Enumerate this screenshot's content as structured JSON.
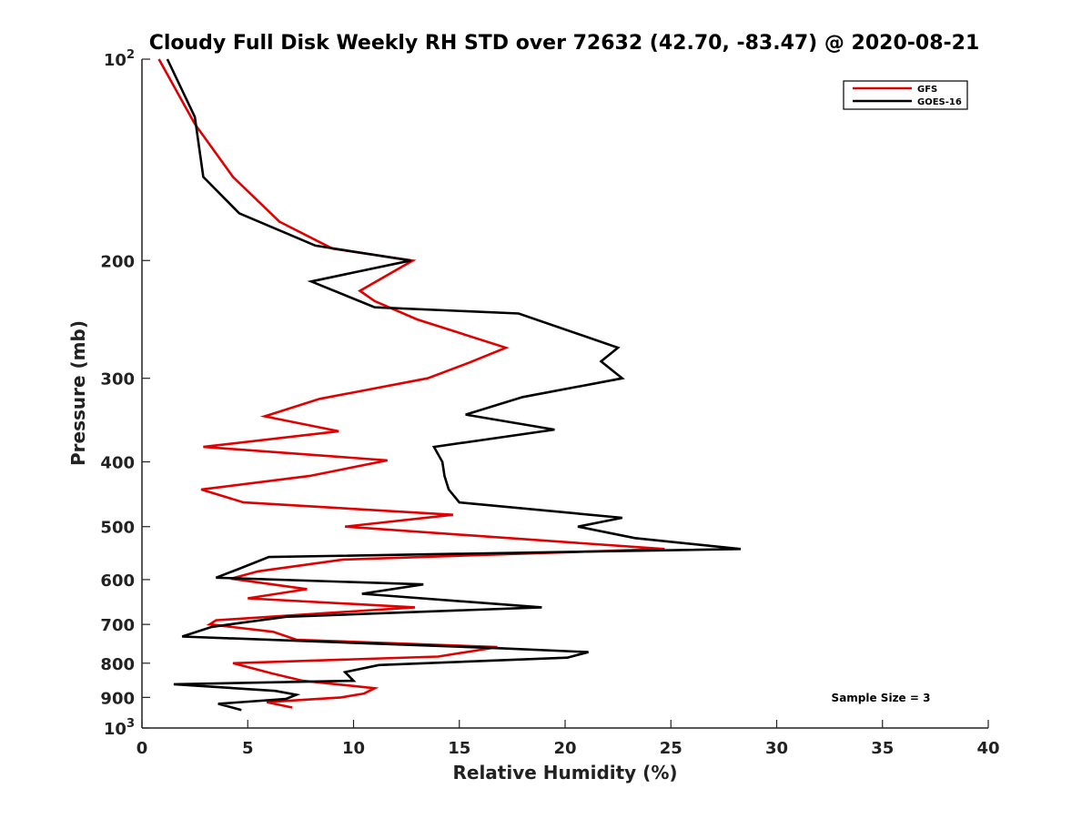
{
  "chart_data": {
    "type": "line",
    "title": "Cloudy Full Disk Weekly RH STD over 72632 (42.70, -83.47) @ 2020-08-21",
    "xlabel": "Relative Humidity (%)",
    "ylabel": "Pressure (mb)",
    "xlim": [
      0,
      40
    ],
    "ylim": [
      1000,
      100
    ],
    "y_scale": "log",
    "x_ticks": [
      0,
      5,
      10,
      15,
      20,
      25,
      30,
      35,
      40
    ],
    "x_tick_labels": [
      "0",
      "5",
      "10",
      "15",
      "20",
      "25",
      "30",
      "35",
      "40"
    ],
    "y_ticks": [
      100,
      200,
      300,
      400,
      500,
      600,
      700,
      800,
      900,
      1000
    ],
    "y_tick_labels": [
      {
        "base": "10",
        "exp": "2"
      },
      {
        "base": "200",
        "exp": ""
      },
      {
        "base": "300",
        "exp": ""
      },
      {
        "base": "400",
        "exp": ""
      },
      {
        "base": "500",
        "exp": ""
      },
      {
        "base": "600",
        "exp": ""
      },
      {
        "base": "700",
        "exp": ""
      },
      {
        "base": "800",
        "exp": ""
      },
      {
        "base": "900",
        "exp": ""
      },
      {
        "base": "10",
        "exp": "3"
      }
    ],
    "legend_position": "top-right",
    "annotation": "Sample Size = 3",
    "grid": false,
    "series": [
      {
        "name": "GFS",
        "color": "#e00000",
        "points": [
          [
            0.8,
            100
          ],
          [
            2.5,
            125
          ],
          [
            4.3,
            150
          ],
          [
            6.5,
            175
          ],
          [
            9.0,
            192
          ],
          [
            12.8,
            200
          ],
          [
            10.3,
            222
          ],
          [
            11.0,
            230
          ],
          [
            13.0,
            245
          ],
          [
            17.2,
            270
          ],
          [
            15.5,
            284
          ],
          [
            13.5,
            300
          ],
          [
            8.4,
            322
          ],
          [
            5.8,
            342
          ],
          [
            9.3,
            360
          ],
          [
            2.9,
            380
          ],
          [
            11.6,
            398
          ],
          [
            7.9,
            420
          ],
          [
            2.8,
            440
          ],
          [
            4.8,
            460
          ],
          [
            14.7,
            480
          ],
          [
            9.6,
            500
          ],
          [
            24.7,
            540
          ],
          [
            9.5,
            560
          ],
          [
            5.5,
            583
          ],
          [
            4.2,
            598
          ],
          [
            7.8,
            620
          ],
          [
            5.0,
            640
          ],
          [
            12.9,
            660
          ],
          [
            3.5,
            690
          ],
          [
            3.2,
            700
          ],
          [
            6.2,
            718
          ],
          [
            7.3,
            738
          ],
          [
            16.8,
            757
          ],
          [
            14.0,
            782
          ],
          [
            4.3,
            800
          ],
          [
            6.1,
            828
          ],
          [
            7.6,
            850
          ],
          [
            11.0,
            872
          ],
          [
            10.5,
            888
          ],
          [
            9.4,
            900
          ],
          [
            5.9,
            915
          ],
          [
            7.1,
            932
          ]
        ]
      },
      {
        "name": "GOES-16",
        "color": "#000000",
        "points": [
          [
            1.2,
            100
          ],
          [
            2.5,
            122
          ],
          [
            2.9,
            150
          ],
          [
            4.6,
            170
          ],
          [
            8.2,
            190
          ],
          [
            12.7,
            200
          ],
          [
            8.0,
            215
          ],
          [
            11.0,
            235
          ],
          [
            17.8,
            240
          ],
          [
            22.5,
            270
          ],
          [
            21.7,
            283
          ],
          [
            22.7,
            300
          ],
          [
            18.0,
            320
          ],
          [
            15.3,
            340
          ],
          [
            19.5,
            358
          ],
          [
            13.8,
            380
          ],
          [
            14.2,
            400
          ],
          [
            14.3,
            420
          ],
          [
            14.5,
            440
          ],
          [
            15.0,
            460
          ],
          [
            22.7,
            485
          ],
          [
            20.6,
            500
          ],
          [
            23.3,
            520
          ],
          [
            28.3,
            540
          ],
          [
            6.0,
            555
          ],
          [
            4.6,
            578
          ],
          [
            3.5,
            596
          ],
          [
            13.3,
            610
          ],
          [
            10.4,
            630
          ],
          [
            18.9,
            660
          ],
          [
            6.8,
            682
          ],
          [
            3.3,
            706
          ],
          [
            1.9,
            730
          ],
          [
            17.0,
            760
          ],
          [
            21.1,
            770
          ],
          [
            20.1,
            785
          ],
          [
            11.2,
            805
          ],
          [
            9.6,
            825
          ],
          [
            10.0,
            850
          ],
          [
            1.5,
            860
          ],
          [
            6.3,
            880
          ],
          [
            7.3,
            892
          ],
          [
            6.8,
            905
          ],
          [
            3.6,
            920
          ],
          [
            4.7,
            940
          ]
        ]
      }
    ]
  }
}
